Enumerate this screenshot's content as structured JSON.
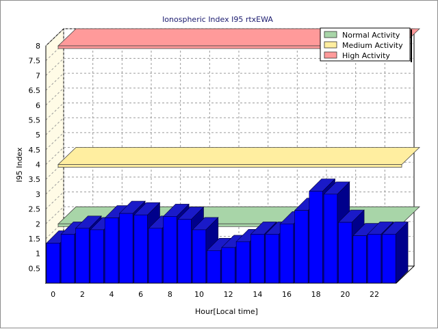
{
  "chart_data": {
    "type": "bar",
    "title": "Ionospheric Index I95 rtxEWA",
    "xlabel": "Hour[Local time]",
    "ylabel": "I95 Index",
    "ylim": [
      0,
      8
    ],
    "xlim": [
      0,
      24
    ],
    "x_ticks": [
      0,
      2,
      4,
      6,
      8,
      10,
      12,
      14,
      16,
      18,
      20,
      22
    ],
    "y_ticks": [
      "0.5",
      "1",
      "1.5",
      "2",
      "2.5",
      "3",
      "3.5",
      "4",
      "4.5",
      "5",
      "5.5",
      "6",
      "6.5",
      "7",
      "7.5",
      "8"
    ],
    "grid": true,
    "legend_position": "top-right",
    "categories": [
      0,
      1,
      2,
      3,
      4,
      5,
      6,
      7,
      8,
      9,
      10,
      11,
      12,
      13,
      14,
      15,
      16,
      17,
      18,
      19,
      20,
      21,
      22,
      23
    ],
    "values": [
      1.35,
      1.65,
      1.85,
      1.8,
      2.2,
      2.35,
      2.3,
      1.85,
      2.25,
      2.15,
      1.8,
      1.1,
      1.2,
      1.4,
      1.65,
      1.65,
      2.0,
      2.45,
      3.1,
      3.0,
      2.05,
      1.6,
      1.65,
      1.65
    ],
    "bar_color": "#0000ff",
    "bands": [
      {
        "name": "Normal Activity",
        "value": 2.0,
        "color": "#a8d5a8"
      },
      {
        "name": "Medium Activity",
        "value": 4.0,
        "color": "#ffeea0"
      },
      {
        "name": "High Activity",
        "value": 8.0,
        "color": "#ff9a9a"
      }
    ]
  }
}
